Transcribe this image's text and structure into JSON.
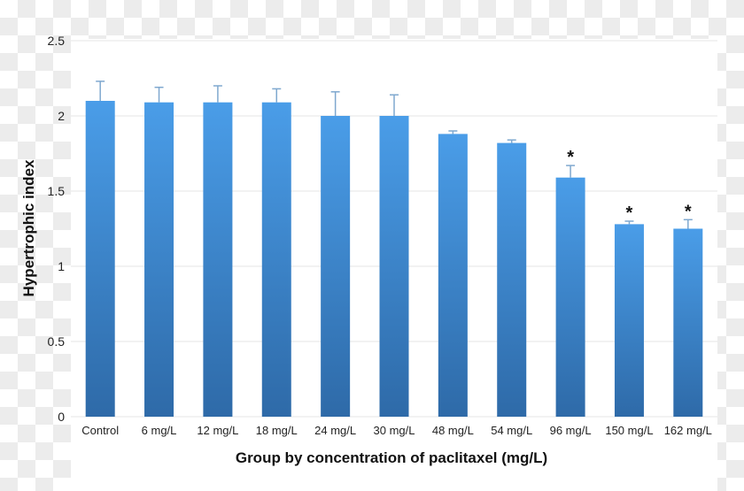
{
  "chart_data": {
    "type": "bar",
    "title": "",
    "xlabel": "Group by concentration of paclitaxel (mg/L)",
    "ylabel": "Hypertrophic index",
    "ylim": [
      0,
      2.5
    ],
    "yticks": [
      "0",
      "0.5",
      "1",
      "1.5",
      "2",
      "2.5"
    ],
    "grid": true,
    "categories": [
      "Control",
      "6 mg/L",
      "12 mg/L",
      "18 mg/L",
      "24 mg/L",
      "30 mg/L",
      "48 mg/L",
      "54 mg/L",
      "96 mg/L",
      "150 mg/L",
      "162 mg/L"
    ],
    "values": [
      2.1,
      2.09,
      2.09,
      2.09,
      2.0,
      2.0,
      1.88,
      1.82,
      1.59,
      1.28,
      1.25
    ],
    "error_upper": [
      0.13,
      0.1,
      0.11,
      0.09,
      0.16,
      0.14,
      0.02,
      0.02,
      0.08,
      0.02,
      0.06
    ],
    "significance": [
      "",
      "",
      "",
      "",
      "",
      "",
      "",
      "",
      "*",
      "*",
      "*"
    ],
    "colors": {
      "bar_top": "#4a9de8",
      "bar_bottom": "#2e6aa8",
      "error": "#7fa8cf",
      "grid": "#e6e6e6"
    }
  }
}
